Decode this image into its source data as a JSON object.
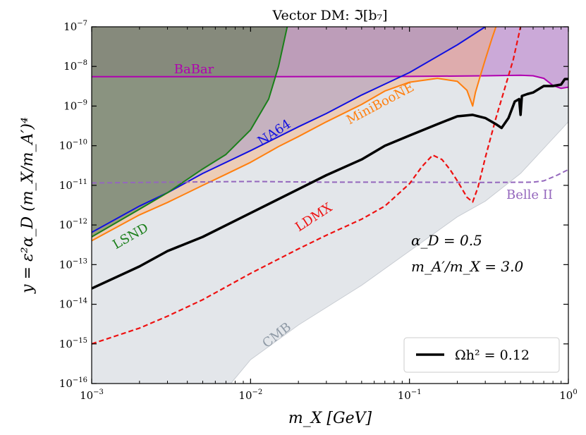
{
  "chart_data": {
    "type": "line",
    "title": "Vector DM: ℑ[b₇]",
    "xlabel": "m_X [GeV]",
    "ylabel": "y = ε²α_D (m_X/m_A′)⁴",
    "xscale": "log",
    "yscale": "log",
    "xlim": [
      0.001,
      1
    ],
    "ylim": [
      1e-16,
      1e-07
    ],
    "x_ticks": [
      {
        "value": 0.001,
        "base": "10",
        "exp": "−3"
      },
      {
        "value": 0.01,
        "base": "10",
        "exp": "−2"
      },
      {
        "value": 0.1,
        "base": "10",
        "exp": "−1"
      },
      {
        "value": 1,
        "base": "10",
        "exp": "0"
      }
    ],
    "y_ticks": [
      {
        "value": 1e-16,
        "base": "10",
        "exp": "−16"
      },
      {
        "value": 1e-15,
        "base": "10",
        "exp": "−15"
      },
      {
        "value": 1e-14,
        "base": "10",
        "exp": "−14"
      },
      {
        "value": 1e-13,
        "base": "10",
        "exp": "−13"
      },
      {
        "value": 1e-12,
        "base": "10",
        "exp": "−12"
      },
      {
        "value": 1e-11,
        "base": "10",
        "exp": "−11"
      },
      {
        "value": 1e-10,
        "base": "10",
        "exp": "−10"
      },
      {
        "value": 1e-09,
        "base": "10",
        "exp": "−9"
      },
      {
        "value": 1e-08,
        "base": "10",
        "exp": "−8"
      },
      {
        "value": 1e-07,
        "base": "10",
        "exp": "−7"
      }
    ],
    "colors": {
      "cmb": "#8f9aa6",
      "babar": "#b000b0",
      "lsnd": "#1a7f1a",
      "na64": "#1010e0",
      "miniboone": "#ff7f0e",
      "ldmx": "#ee1111",
      "belle2": "#9467bd",
      "relic": "#000000"
    },
    "series": [
      {
        "name": "CMB",
        "label": "CMB",
        "kind": "exclusion-region",
        "color_key": "cmb",
        "x": [
          0.0075,
          0.01,
          0.02,
          0.05,
          0.1,
          0.2,
          0.3,
          0.5,
          1.0
        ],
        "y": [
          1e-16,
          4e-16,
          3e-15,
          3e-14,
          2.2e-13,
          1.6e-12,
          4e-12,
          2e-11,
          4e-10
        ]
      },
      {
        "name": "BaBar",
        "label": "BaBar",
        "kind": "exclusion-line",
        "color_key": "babar",
        "x": [
          0.001,
          0.01,
          0.1,
          0.3,
          0.5,
          0.6,
          0.7,
          0.8,
          0.9,
          1.0
        ],
        "y": [
          5.5e-09,
          5.5e-09,
          5.6e-09,
          5.8e-09,
          6e-09,
          5.8e-09,
          5e-09,
          3.3e-09,
          2.8e-09,
          3e-09
        ]
      },
      {
        "name": "LSND",
        "label": "LSND",
        "kind": "exclusion-line",
        "color_key": "lsnd",
        "x": [
          0.001,
          0.002,
          0.003,
          0.005,
          0.007,
          0.01,
          0.013,
          0.015,
          0.017
        ],
        "y": [
          5e-13,
          2.5e-12,
          6.5e-12,
          2.6e-11,
          6e-11,
          2.5e-10,
          1.5e-09,
          1e-08,
          1e-07
        ]
      },
      {
        "name": "NA64",
        "label": "NA64",
        "kind": "exclusion-line",
        "color_key": "na64",
        "x": [
          0.001,
          0.002,
          0.003,
          0.005,
          0.01,
          0.02,
          0.03,
          0.05,
          0.1,
          0.2,
          0.3
        ],
        "y": [
          6.5e-13,
          3e-12,
          6.5e-12,
          2e-11,
          7.5e-11,
          3e-10,
          6.5e-10,
          1.9e-09,
          7e-09,
          3.5e-08,
          1e-07
        ]
      },
      {
        "name": "MiniBooNE",
        "label": "MiniBooNE",
        "kind": "exclusion-line",
        "color_key": "miniboone",
        "x": [
          0.001,
          0.002,
          0.003,
          0.005,
          0.007,
          0.01,
          0.015,
          0.02,
          0.03,
          0.05,
          0.07,
          0.1,
          0.15,
          0.2,
          0.23,
          0.25,
          0.26,
          0.28,
          0.3,
          0.33,
          0.35
        ],
        "y": [
          4e-13,
          1.8e-12,
          3.7e-12,
          1e-11,
          1.9e-11,
          3.8e-11,
          9.5e-11,
          1.7e-10,
          4e-10,
          1.1e-09,
          2.4e-09,
          4e-09,
          5e-09,
          4.2e-09,
          2.5e-09,
          1e-09,
          2.2e-09,
          6e-09,
          1.5e-08,
          5e-08,
          1e-07
        ]
      },
      {
        "name": "Belle II",
        "label": "Belle II",
        "kind": "projection-dashed",
        "color_key": "belle2",
        "x": [
          0.001,
          0.003,
          0.01,
          0.03,
          0.1,
          0.3,
          0.6,
          0.7,
          0.85,
          1.0
        ],
        "y": [
          1.15e-11,
          1.2e-11,
          1.25e-11,
          1.2e-11,
          1.2e-11,
          1.18e-11,
          1.2e-11,
          1.3e-11,
          1.8e-11,
          2.5e-11
        ]
      },
      {
        "name": "LDMX",
        "label": "LDMX",
        "kind": "projection-dashed",
        "color_key": "ldmx",
        "x": [
          0.001,
          0.002,
          0.003,
          0.005,
          0.01,
          0.02,
          0.03,
          0.05,
          0.07,
          0.1,
          0.12,
          0.14,
          0.16,
          0.18,
          0.2,
          0.23,
          0.25,
          0.27,
          0.3,
          0.35,
          0.4,
          0.45,
          0.5
        ],
        "y": [
          1e-15,
          2.5e-15,
          5e-15,
          1.3e-14,
          6e-14,
          2.5e-13,
          5.5e-13,
          1.4e-12,
          3e-12,
          1.1e-11,
          3e-11,
          5.8e-11,
          4.5e-11,
          2.5e-11,
          1.3e-11,
          5e-12,
          3.8e-12,
          9e-12,
          5e-11,
          5e-10,
          3e-09,
          1.5e-08,
          1e-07
        ]
      },
      {
        "name": "Omega h^2 = 0.12",
        "label": "",
        "kind": "relic-line",
        "color_key": "relic",
        "x": [
          0.001,
          0.002,
          0.003,
          0.005,
          0.01,
          0.02,
          0.03,
          0.05,
          0.07,
          0.1,
          0.15,
          0.2,
          0.25,
          0.3,
          0.35,
          0.38,
          0.42,
          0.46,
          0.49,
          0.5,
          0.51,
          0.55,
          0.6,
          0.7,
          0.8,
          0.9,
          0.95,
          1.0
        ],
        "y": [
          2.5e-14,
          9e-14,
          2.2e-13,
          5e-13,
          2e-12,
          8e-12,
          1.8e-11,
          4.5e-11,
          1e-10,
          1.8e-10,
          3.5e-10,
          5.5e-10,
          6e-10,
          5e-10,
          3.5e-10,
          2.8e-10,
          5e-10,
          1.3e-09,
          1.5e-09,
          6e-10,
          1.8e-09,
          2e-09,
          2.2e-09,
          3.2e-09,
          3.2e-09,
          3.5e-09,
          4.8e-09,
          4.8e-09
        ]
      }
    ],
    "annotations": {
      "alpha_d": "α_D = 0.5",
      "mass_ratio": "m_A′/m_X = 3.0"
    },
    "legend": {
      "position": "lower-right",
      "entries": [
        {
          "label": "Ωh² = 0.12",
          "color_key": "relic"
        }
      ]
    }
  }
}
